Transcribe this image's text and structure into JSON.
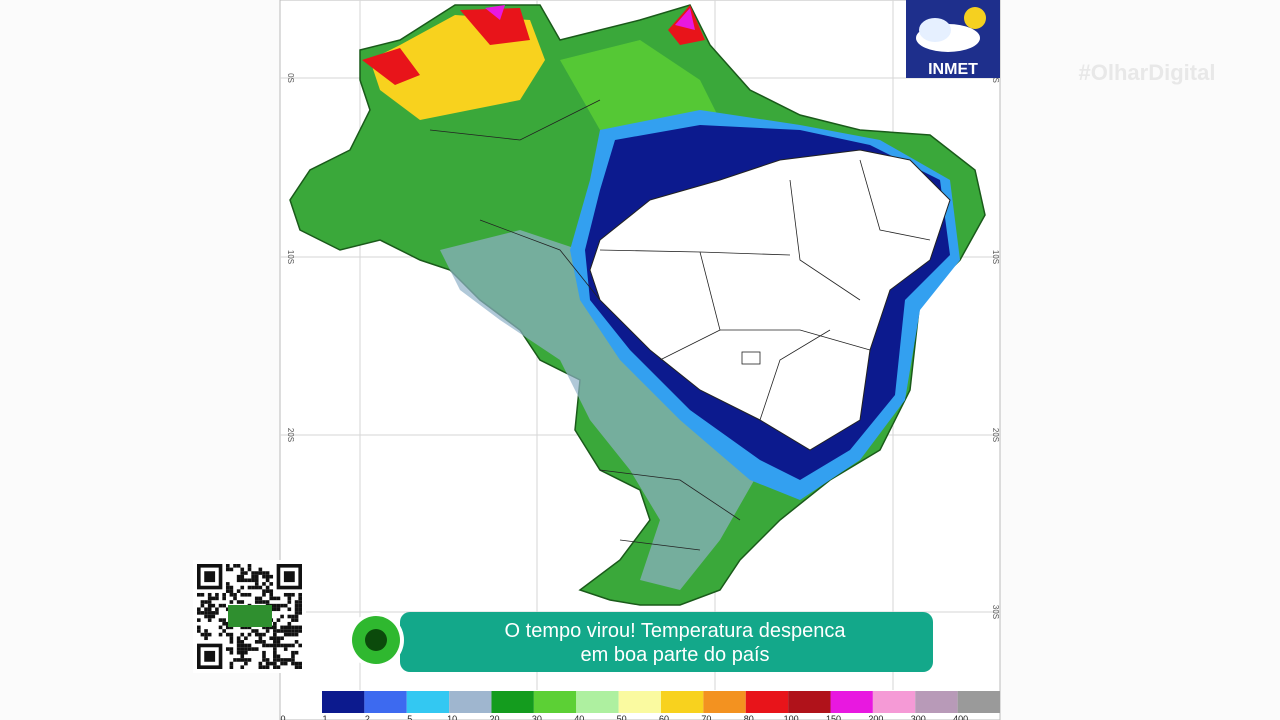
{
  "logo": {
    "text": "INMET"
  },
  "watermark": "#OlharDigital",
  "map": {
    "lat_labels": [
      "0S",
      "10S",
      "20S",
      "30S"
    ]
  },
  "headline": {
    "lines": [
      "O tempo virou! Temperatura despenca",
      "em boa parte do país"
    ]
  },
  "legend": {
    "colors": [
      "#0c1a8e",
      "#3d6af0",
      "#33c8f2",
      "#9fb6cf",
      "#149c1e",
      "#5cd035",
      "#aef0a0",
      "#fafaa0",
      "#f8d21e",
      "#f39220",
      "#e8141a",
      "#b0121a",
      "#e818e0",
      "#f59ad6",
      "#b89ab8",
      "#9a9a9a"
    ],
    "labels": [
      "0",
      "1",
      "2",
      "5",
      "10",
      "20",
      "30",
      "40",
      "50",
      "60",
      "70",
      "80",
      "100",
      "150",
      "200",
      "300",
      "400"
    ]
  }
}
